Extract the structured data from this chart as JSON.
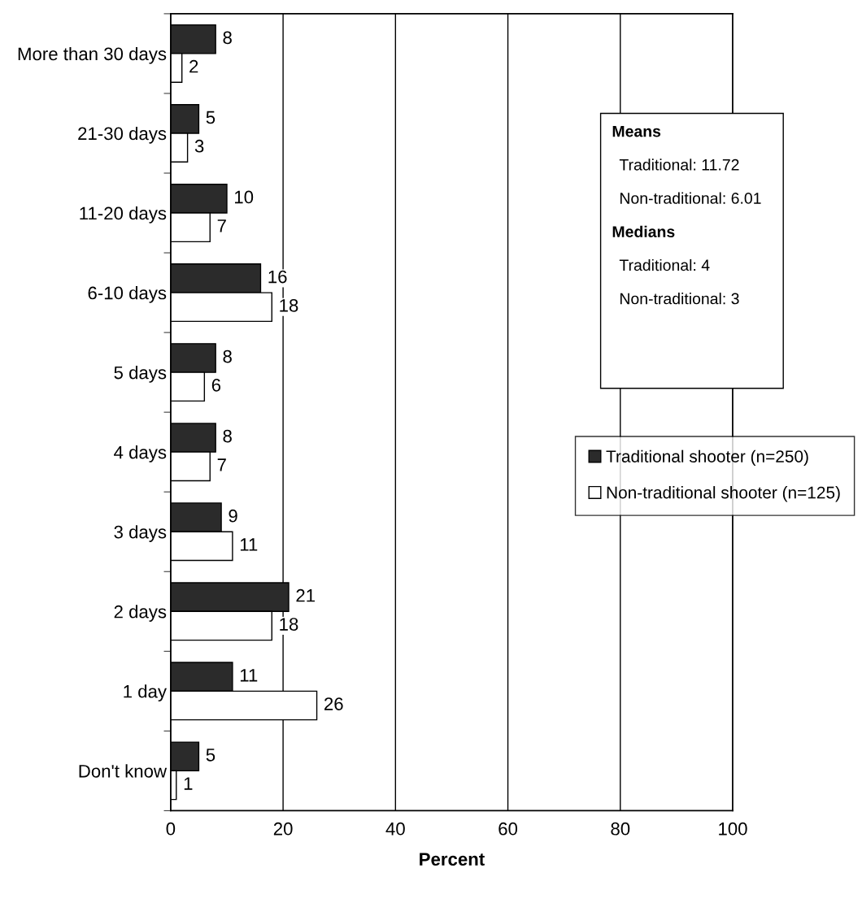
{
  "chart_data": {
    "type": "bar",
    "orientation": "horizontal",
    "xlabel": "Percent",
    "categories": [
      "More than 30 days",
      "21-30 days",
      "11-20 days",
      "6-10 days",
      "5 days",
      "4 days",
      "3 days",
      "2 days",
      "1 day",
      "Don't know"
    ],
    "series": [
      {
        "name": "Traditional shooter (n=250)",
        "color": "#2b2b2b",
        "values": [
          8,
          5,
          10,
          16,
          8,
          8,
          9,
          21,
          11,
          5
        ]
      },
      {
        "name": "Non-traditional shooter (n=125)",
        "color": "#ffffff",
        "values": [
          2,
          3,
          7,
          18,
          6,
          7,
          11,
          18,
          26,
          1
        ]
      }
    ],
    "xlim": [
      0,
      100
    ],
    "xticks": [
      0,
      20,
      40,
      60,
      80,
      100
    ],
    "grid": "x",
    "data_labels": true,
    "legend": "right",
    "annotations": [
      "Means",
      "Traditional: 11.72",
      "Non-traditional: 6.01",
      "Medians",
      "Traditional: 4",
      "Non-traditional: 3"
    ]
  }
}
